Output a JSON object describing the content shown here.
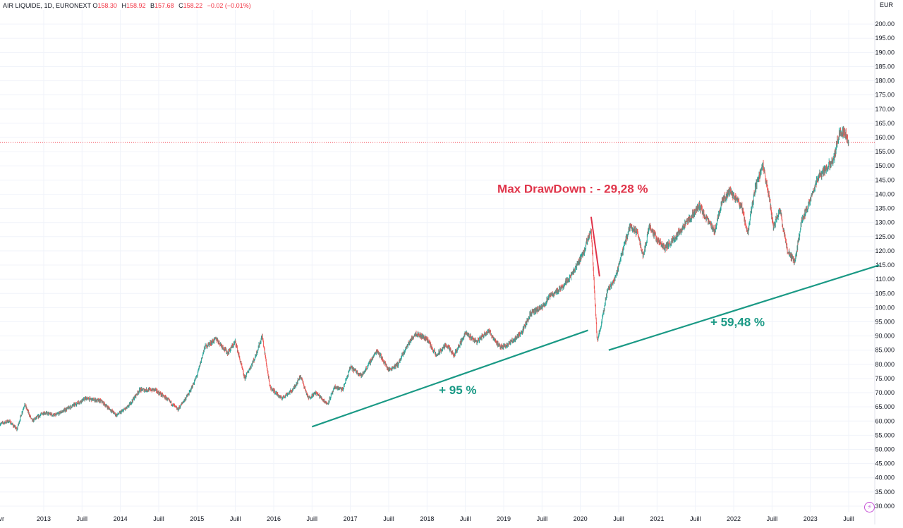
{
  "header": {
    "symbol": "AIR LIQUIDE, 1D, EURONEXT",
    "open_label": "O",
    "open": "158.30",
    "high_label": "H",
    "high": "158.92",
    "low_label": "B",
    "low": "157.68",
    "close_label": "C",
    "close": "158.22",
    "change": "−0.02 (−0.01%)"
  },
  "currency": "EUR",
  "colors": {
    "up": "#26a69a",
    "down": "#ef5350",
    "trendline": "#1a9985",
    "annotation_green": "#1a9985",
    "annotation_red": "#e0344a",
    "price_line": "#f23645",
    "grid": "#f0f3fa",
    "axis_text": "#131722"
  },
  "icons": {
    "bottom_right": "lightning-icon"
  },
  "chart_data": {
    "type": "candlestick",
    "y_axis": {
      "min": 28,
      "max": 205,
      "ticks": [
        "30.000",
        "35.000",
        "40.000",
        "45.000",
        "50.000",
        "55.000",
        "60.000",
        "65.000",
        "70.000",
        "75.000",
        "80.000",
        "85.000",
        "90.000",
        "95.000",
        "100.00",
        "105.00",
        "110.00",
        "115.00",
        "120.00",
        "125.00",
        "130.00",
        "135.00",
        "140.00",
        "145.00",
        "150.00",
        "155.00",
        "160.00",
        "165.00",
        "170.00",
        "175.00",
        "180.00",
        "185.00",
        "190.00",
        "195.00",
        "200.00"
      ]
    },
    "x_axis": {
      "range": [
        2012.43,
        2023.84
      ],
      "ticks": [
        {
          "t": 2012.45,
          "label": "vr"
        },
        {
          "t": 2013.0,
          "label": "2013"
        },
        {
          "t": 2013.5,
          "label": "Juill"
        },
        {
          "t": 2014.0,
          "label": "2014"
        },
        {
          "t": 2014.5,
          "label": "Juill"
        },
        {
          "t": 2015.0,
          "label": "2015"
        },
        {
          "t": 2015.5,
          "label": "Juill"
        },
        {
          "t": 2016.0,
          "label": "2016"
        },
        {
          "t": 2016.5,
          "label": "Juill"
        },
        {
          "t": 2017.0,
          "label": "2017"
        },
        {
          "t": 2017.5,
          "label": "Juill"
        },
        {
          "t": 2018.0,
          "label": "2018"
        },
        {
          "t": 2018.5,
          "label": "Juill"
        },
        {
          "t": 2019.0,
          "label": "2019"
        },
        {
          "t": 2019.5,
          "label": "Juill"
        },
        {
          "t": 2020.0,
          "label": "2020"
        },
        {
          "t": 2020.5,
          "label": "Juill"
        },
        {
          "t": 2021.0,
          "label": "2021"
        },
        {
          "t": 2021.5,
          "label": "Juill"
        },
        {
          "t": 2022.0,
          "label": "2022"
        },
        {
          "t": 2022.5,
          "label": "Juill"
        },
        {
          "t": 2023.0,
          "label": "2023"
        },
        {
          "t": 2023.5,
          "label": "Juill"
        }
      ]
    },
    "price_path": [
      [
        2012.43,
        59
      ],
      [
        2012.55,
        60
      ],
      [
        2012.65,
        57
      ],
      [
        2012.75,
        66
      ],
      [
        2012.85,
        60
      ],
      [
        2013.0,
        63
      ],
      [
        2013.15,
        62
      ],
      [
        2013.35,
        65
      ],
      [
        2013.55,
        68
      ],
      [
        2013.75,
        67
      ],
      [
        2013.95,
        62
      ],
      [
        2014.1,
        65
      ],
      [
        2014.25,
        71
      ],
      [
        2014.45,
        71
      ],
      [
        2014.6,
        68
      ],
      [
        2014.75,
        64
      ],
      [
        2014.9,
        70
      ],
      [
        2015.0,
        76
      ],
      [
        2015.1,
        86
      ],
      [
        2015.25,
        89
      ],
      [
        2015.4,
        84
      ],
      [
        2015.5,
        88
      ],
      [
        2015.62,
        75
      ],
      [
        2015.75,
        82
      ],
      [
        2015.85,
        90
      ],
      [
        2015.95,
        72
      ],
      [
        2016.1,
        68
      ],
      [
        2016.25,
        71
      ],
      [
        2016.35,
        76
      ],
      [
        2016.45,
        68
      ],
      [
        2016.55,
        70
      ],
      [
        2016.7,
        66
      ],
      [
        2016.8,
        72
      ],
      [
        2016.9,
        71
      ],
      [
        2017.0,
        79
      ],
      [
        2017.15,
        76
      ],
      [
        2017.35,
        85
      ],
      [
        2017.5,
        78
      ],
      [
        2017.62,
        80
      ],
      [
        2017.75,
        87
      ],
      [
        2017.85,
        91
      ],
      [
        2018.0,
        89
      ],
      [
        2018.12,
        83
      ],
      [
        2018.25,
        87
      ],
      [
        2018.35,
        83
      ],
      [
        2018.5,
        91
      ],
      [
        2018.65,
        88
      ],
      [
        2018.8,
        92
      ],
      [
        2018.95,
        86
      ],
      [
        2019.05,
        87
      ],
      [
        2019.15,
        89
      ],
      [
        2019.25,
        92
      ],
      [
        2019.35,
        98
      ],
      [
        2019.5,
        100
      ],
      [
        2019.6,
        104
      ],
      [
        2019.75,
        107
      ],
      [
        2019.9,
        112
      ],
      [
        2020.05,
        120
      ],
      [
        2020.14,
        128
      ],
      [
        2020.22,
        88
      ],
      [
        2020.28,
        95
      ],
      [
        2020.35,
        106
      ],
      [
        2020.45,
        110
      ],
      [
        2020.55,
        120
      ],
      [
        2020.65,
        129
      ],
      [
        2020.75,
        126
      ],
      [
        2020.82,
        118
      ],
      [
        2020.9,
        129
      ],
      [
        2021.0,
        124
      ],
      [
        2021.1,
        121
      ],
      [
        2021.18,
        123
      ],
      [
        2021.3,
        127
      ],
      [
        2021.45,
        132
      ],
      [
        2021.55,
        136
      ],
      [
        2021.65,
        131
      ],
      [
        2021.75,
        127
      ],
      [
        2021.85,
        138
      ],
      [
        2021.95,
        141
      ],
      [
        2022.1,
        136
      ],
      [
        2022.18,
        126
      ],
      [
        2022.28,
        142
      ],
      [
        2022.38,
        150
      ],
      [
        2022.45,
        141
      ],
      [
        2022.52,
        128
      ],
      [
        2022.6,
        135
      ],
      [
        2022.7,
        120
      ],
      [
        2022.8,
        116
      ],
      [
        2022.88,
        130
      ],
      [
        2023.0,
        138
      ],
      [
        2023.1,
        146
      ],
      [
        2023.2,
        149
      ],
      [
        2023.3,
        152
      ],
      [
        2023.38,
        162
      ],
      [
        2023.45,
        162
      ],
      [
        2023.5,
        158
      ]
    ],
    "last_price": 158.22,
    "trendlines": [
      {
        "from": [
          2016.5,
          58
        ],
        "to": [
          2020.1,
          92
        ]
      },
      {
        "from": [
          2020.37,
          85
        ],
        "to": [
          2023.9,
          115
        ]
      }
    ],
    "drawdown_line": {
      "from": [
        2020.14,
        132
      ],
      "to": [
        2020.25,
        111
      ]
    },
    "annotations": [
      {
        "text": "Max DrawDown : - 29,28 %",
        "t": 2019.9,
        "price": 140.5,
        "color": "red"
      },
      {
        "text": "+ 95 %",
        "t": 2018.4,
        "price": 69.5,
        "color": "green"
      },
      {
        "text": "+ 59,48 %",
        "t": 2022.05,
        "price": 93.5,
        "color": "green"
      }
    ]
  }
}
